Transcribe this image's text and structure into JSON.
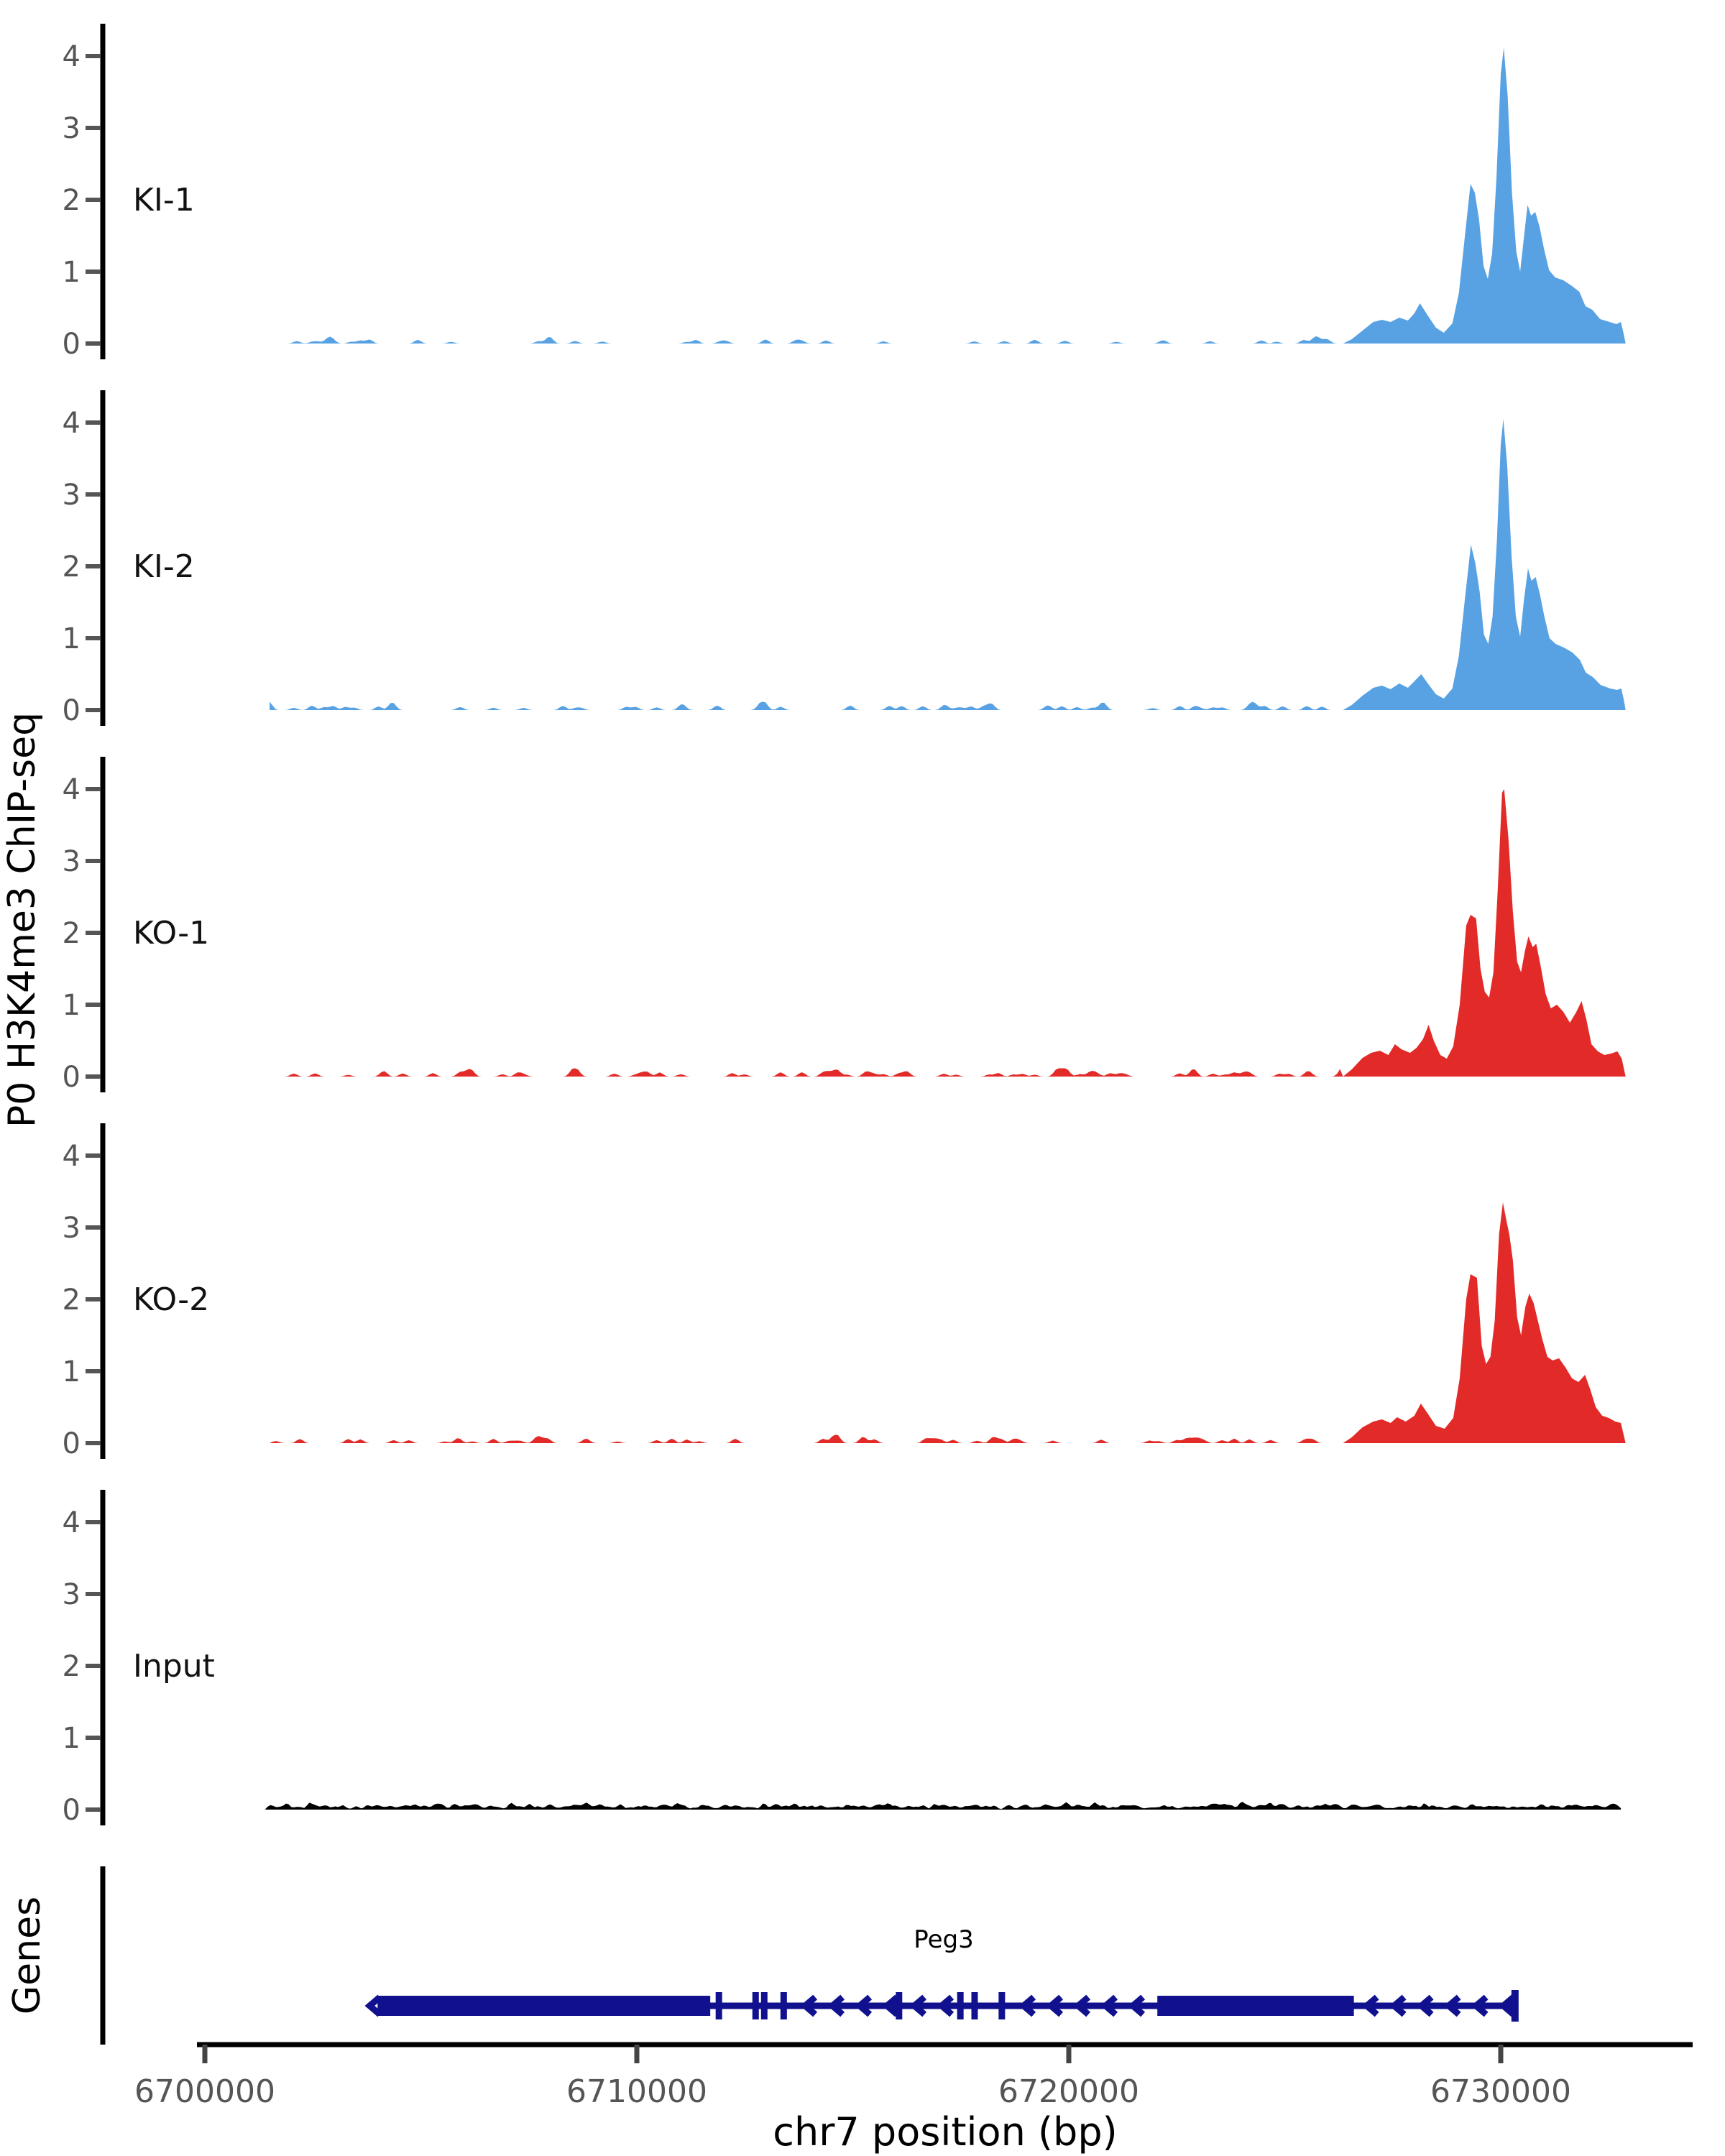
{
  "chart_data": {
    "type": "area",
    "title": "",
    "ylabel": "P0 H3K4me3 ChIP-seq",
    "xlabel": "chr7 position (bp)",
    "legend": "none",
    "grid": false,
    "x_axis": {
      "range_bp": [
        6698200,
        6734400
      ],
      "ticks": [
        6700000,
        6710000,
        6720000,
        6730000
      ],
      "tick_labels": [
        "6700000",
        "6710000",
        "6720000",
        "6730000"
      ]
    },
    "y_axis_per_track": {
      "range": [
        0,
        4.45
      ],
      "ticks": [
        0,
        1,
        2,
        3,
        4
      ],
      "tick_labels": [
        "0",
        "1",
        "2",
        "3",
        "4"
      ]
    },
    "tracks": [
      {
        "label": "KI-1",
        "color": "#58A2E3",
        "noise": {
          "seed": 101,
          "density": 0.12,
          "max": 0.09,
          "from_bp": 6701500,
          "to_bp": 6726300,
          "continuous": false
        },
        "peak_points": [
          [
            6726350,
            0
          ],
          [
            6726550,
            0.06
          ],
          [
            6726800,
            0.18
          ],
          [
            6727050,
            0.3
          ],
          [
            6727250,
            0.33
          ],
          [
            6727450,
            0.3
          ],
          [
            6727650,
            0.36
          ],
          [
            6727850,
            0.32
          ],
          [
            6728000,
            0.42
          ],
          [
            6728130,
            0.56
          ],
          [
            6728300,
            0.4
          ],
          [
            6728500,
            0.22
          ],
          [
            6728680,
            0.15
          ],
          [
            6728880,
            0.28
          ],
          [
            6729030,
            0.7
          ],
          [
            6729180,
            1.55
          ],
          [
            6729300,
            2.22
          ],
          [
            6729400,
            2.1
          ],
          [
            6729500,
            1.72
          ],
          [
            6729600,
            1.08
          ],
          [
            6729700,
            0.9
          ],
          [
            6729800,
            1.25
          ],
          [
            6729900,
            2.3
          ],
          [
            6730000,
            3.75
          ],
          [
            6730070,
            4.12
          ],
          [
            6730160,
            3.45
          ],
          [
            6730260,
            2.1
          ],
          [
            6730360,
            1.28
          ],
          [
            6730450,
            1.0
          ],
          [
            6730540,
            1.5
          ],
          [
            6730620,
            1.93
          ],
          [
            6730700,
            1.78
          ],
          [
            6730800,
            1.83
          ],
          [
            6730900,
            1.62
          ],
          [
            6731000,
            1.32
          ],
          [
            6731120,
            1.02
          ],
          [
            6731260,
            0.92
          ],
          [
            6731450,
            0.88
          ],
          [
            6731650,
            0.8
          ],
          [
            6731820,
            0.72
          ],
          [
            6731960,
            0.52
          ],
          [
            6732120,
            0.47
          ],
          [
            6732300,
            0.34
          ],
          [
            6732520,
            0.3
          ],
          [
            6732680,
            0.27
          ],
          [
            6732780,
            0.3
          ],
          [
            6732840,
            0.15
          ],
          [
            6732890,
            0
          ]
        ]
      },
      {
        "label": "KI-2",
        "color": "#58A2E3",
        "noise": {
          "seed": 202,
          "density": 0.16,
          "max": 0.1,
          "from_bp": 6701500,
          "to_bp": 6726300,
          "continuous": false
        },
        "peak_points": [
          [
            6726350,
            0
          ],
          [
            6726550,
            0.07
          ],
          [
            6726800,
            0.2
          ],
          [
            6727050,
            0.31
          ],
          [
            6727250,
            0.34
          ],
          [
            6727450,
            0.29
          ],
          [
            6727650,
            0.37
          ],
          [
            6727850,
            0.31
          ],
          [
            6728000,
            0.4
          ],
          [
            6728160,
            0.5
          ],
          [
            6728300,
            0.38
          ],
          [
            6728500,
            0.22
          ],
          [
            6728680,
            0.16
          ],
          [
            6728880,
            0.3
          ],
          [
            6729030,
            0.75
          ],
          [
            6729180,
            1.6
          ],
          [
            6729310,
            2.3
          ],
          [
            6729410,
            2.05
          ],
          [
            6729510,
            1.65
          ],
          [
            6729610,
            1.05
          ],
          [
            6729710,
            0.92
          ],
          [
            6729810,
            1.3
          ],
          [
            6729910,
            2.35
          ],
          [
            6730000,
            3.7
          ],
          [
            6730060,
            4.05
          ],
          [
            6730150,
            3.4
          ],
          [
            6730250,
            2.15
          ],
          [
            6730350,
            1.3
          ],
          [
            6730450,
            1.02
          ],
          [
            6730540,
            1.55
          ],
          [
            6730630,
            1.97
          ],
          [
            6730710,
            1.8
          ],
          [
            6730810,
            1.85
          ],
          [
            6730910,
            1.6
          ],
          [
            6731010,
            1.3
          ],
          [
            6731130,
            1.0
          ],
          [
            6731270,
            0.92
          ],
          [
            6731460,
            0.87
          ],
          [
            6731660,
            0.8
          ],
          [
            6731830,
            0.7
          ],
          [
            6731970,
            0.52
          ],
          [
            6732130,
            0.46
          ],
          [
            6732310,
            0.35
          ],
          [
            6732530,
            0.3
          ],
          [
            6732690,
            0.28
          ],
          [
            6732790,
            0.3
          ],
          [
            6732850,
            0.14
          ],
          [
            6732890,
            0
          ]
        ]
      },
      {
        "label": "KO-1",
        "color": "#E22B29",
        "noise": {
          "seed": 303,
          "density": 0.2,
          "max": 0.1,
          "from_bp": 6701500,
          "to_bp": 6726300,
          "continuous": false
        },
        "peak_points": [
          [
            6726350,
            0
          ],
          [
            6726550,
            0.1
          ],
          [
            6726800,
            0.26
          ],
          [
            6727000,
            0.33
          ],
          [
            6727200,
            0.36
          ],
          [
            6727400,
            0.3
          ],
          [
            6727550,
            0.45
          ],
          [
            6727700,
            0.38
          ],
          [
            6727900,
            0.33
          ],
          [
            6728050,
            0.4
          ],
          [
            6728200,
            0.52
          ],
          [
            6728330,
            0.72
          ],
          [
            6728450,
            0.5
          ],
          [
            6728600,
            0.3
          ],
          [
            6728750,
            0.25
          ],
          [
            6728900,
            0.42
          ],
          [
            6729050,
            1.0
          ],
          [
            6729200,
            2.1
          ],
          [
            6729300,
            2.25
          ],
          [
            6729430,
            2.2
          ],
          [
            6729530,
            1.5
          ],
          [
            6729630,
            1.18
          ],
          [
            6729730,
            1.1
          ],
          [
            6729830,
            1.45
          ],
          [
            6729930,
            2.6
          ],
          [
            6730030,
            3.95
          ],
          [
            6730080,
            4.0
          ],
          [
            6730180,
            3.3
          ],
          [
            6730280,
            2.3
          ],
          [
            6730380,
            1.6
          ],
          [
            6730470,
            1.45
          ],
          [
            6730560,
            1.75
          ],
          [
            6730640,
            1.95
          ],
          [
            6730740,
            1.8
          ],
          [
            6730820,
            1.85
          ],
          [
            6730920,
            1.55
          ],
          [
            6731040,
            1.15
          ],
          [
            6731160,
            0.95
          ],
          [
            6731300,
            1.0
          ],
          [
            6731450,
            0.9
          ],
          [
            6731600,
            0.75
          ],
          [
            6731750,
            0.9
          ],
          [
            6731870,
            1.05
          ],
          [
            6731980,
            0.8
          ],
          [
            6732100,
            0.45
          ],
          [
            6732250,
            0.35
          ],
          [
            6732400,
            0.3
          ],
          [
            6732550,
            0.32
          ],
          [
            6732700,
            0.35
          ],
          [
            6732800,
            0.25
          ],
          [
            6732890,
            0
          ]
        ]
      },
      {
        "label": "KO-2",
        "color": "#E22B29",
        "noise": {
          "seed": 404,
          "density": 0.18,
          "max": 0.1,
          "from_bp": 6701500,
          "to_bp": 6726300,
          "continuous": false
        },
        "peak_points": [
          [
            6726350,
            0
          ],
          [
            6726550,
            0.08
          ],
          [
            6726800,
            0.22
          ],
          [
            6727050,
            0.3
          ],
          [
            6727250,
            0.33
          ],
          [
            6727450,
            0.28
          ],
          [
            6727600,
            0.36
          ],
          [
            6727800,
            0.3
          ],
          [
            6728000,
            0.38
          ],
          [
            6728150,
            0.55
          ],
          [
            6728300,
            0.42
          ],
          [
            6728500,
            0.24
          ],
          [
            6728700,
            0.2
          ],
          [
            6728900,
            0.35
          ],
          [
            6729050,
            0.9
          ],
          [
            6729200,
            2.0
          ],
          [
            6729300,
            2.35
          ],
          [
            6729450,
            2.3
          ],
          [
            6729560,
            1.35
          ],
          [
            6729660,
            1.1
          ],
          [
            6729760,
            1.2
          ],
          [
            6729860,
            1.7
          ],
          [
            6729960,
            2.9
          ],
          [
            6730050,
            3.35
          ],
          [
            6730130,
            3.1
          ],
          [
            6730200,
            2.9
          ],
          [
            6730280,
            2.55
          ],
          [
            6730380,
            1.75
          ],
          [
            6730470,
            1.5
          ],
          [
            6730570,
            1.9
          ],
          [
            6730660,
            2.08
          ],
          [
            6730760,
            1.95
          ],
          [
            6730860,
            1.7
          ],
          [
            6730960,
            1.45
          ],
          [
            6731080,
            1.2
          ],
          [
            6731200,
            1.15
          ],
          [
            6731350,
            1.18
          ],
          [
            6731500,
            1.05
          ],
          [
            6731650,
            0.9
          ],
          [
            6731800,
            0.85
          ],
          [
            6731950,
            0.95
          ],
          [
            6732070,
            0.75
          ],
          [
            6732200,
            0.5
          ],
          [
            6732350,
            0.38
          ],
          [
            6732500,
            0.35
          ],
          [
            6732650,
            0.3
          ],
          [
            6732780,
            0.28
          ],
          [
            6732890,
            0
          ]
        ]
      },
      {
        "label": "Input",
        "color": "#000000",
        "noise": {
          "seed": 505,
          "base": 0.045,
          "amp": 0.042,
          "from_bp": 6701400,
          "to_bp": 6732820,
          "continuous": true
        },
        "peak_points": []
      }
    ],
    "gene_track": {
      "axis_label": "Genes",
      "gene": "Peg3",
      "strand": "-",
      "color": "#11118F",
      "span_bp": [
        6704000,
        6730330
      ],
      "utr_boxes_bp": [
        [
          6704000,
          6711700
        ],
        [
          6722050,
          6726600
        ]
      ],
      "exon_tick_bp": [
        6711900,
        6712750,
        6712950,
        6713400,
        6716070,
        6717490,
        6717820,
        6718450
      ],
      "terminal_bar_bp": 6730330
    }
  }
}
